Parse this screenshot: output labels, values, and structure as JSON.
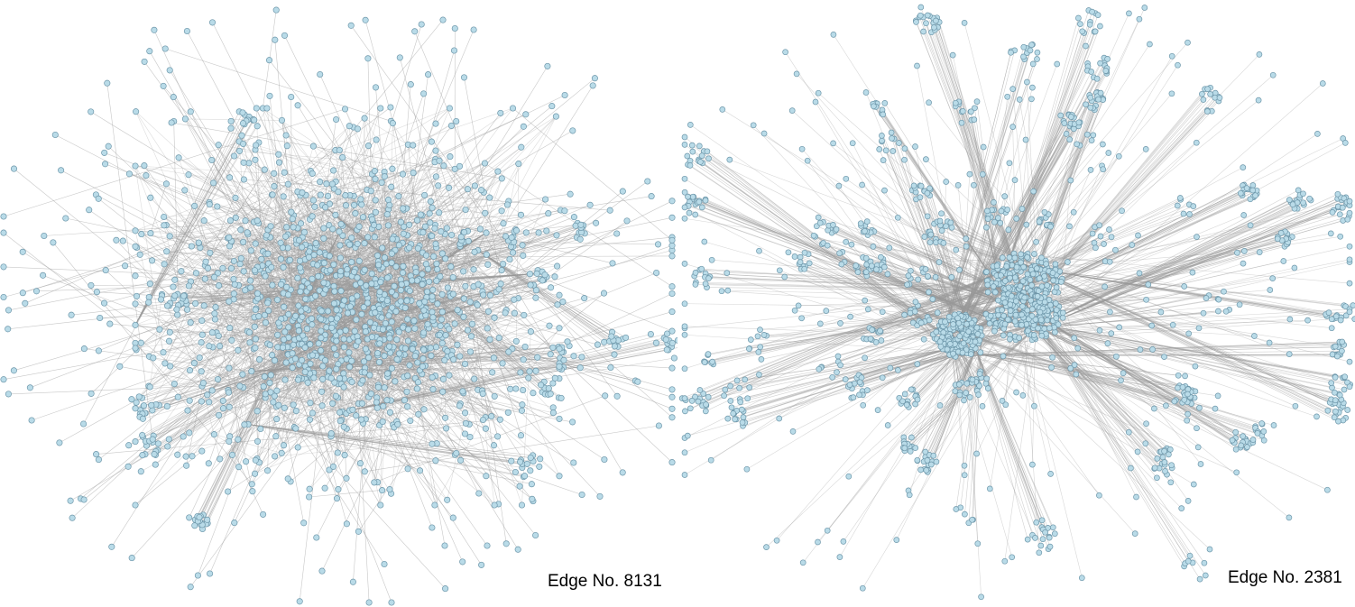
{
  "colors": {
    "node_fill": "#b9dbe8",
    "node_stroke": "#6e97aa",
    "edge": "#9a9a9a",
    "background": "#ffffff"
  },
  "networks": [
    {
      "edge_label": "Edge No. 8131"
    },
    {
      "edge_label": "Edge No. 2381"
    }
  ]
}
